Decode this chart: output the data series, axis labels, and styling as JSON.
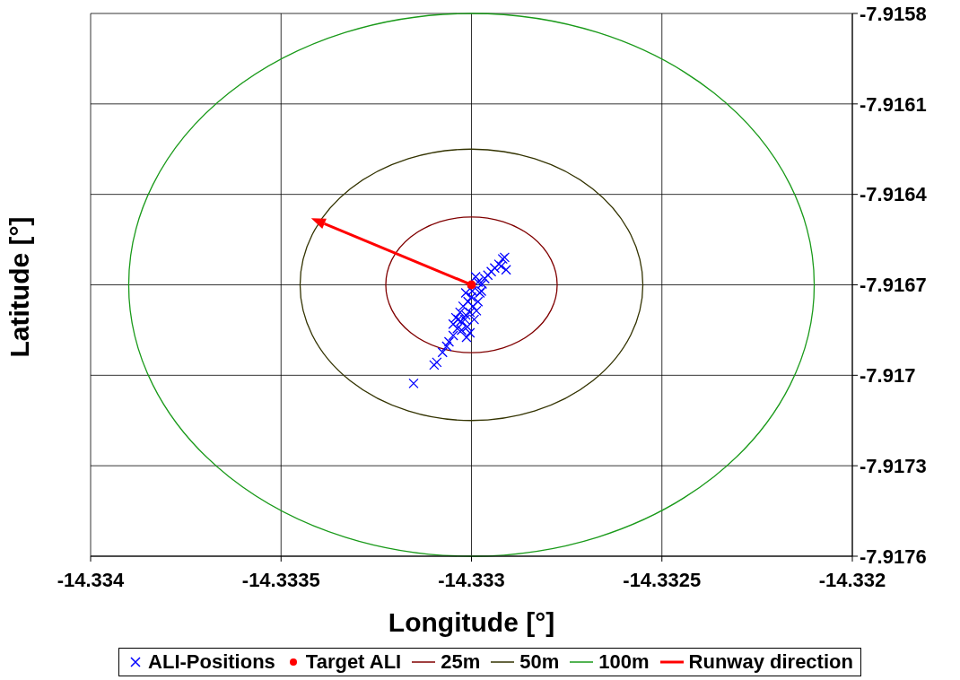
{
  "chart_data": {
    "type": "scatter",
    "xlabel": "Longitude [°]",
    "ylabel": "Latitude [°]",
    "xlim": [
      -14.334,
      -14.332
    ],
    "xticks": [
      -14.334,
      -14.3335,
      -14.333,
      -14.3325,
      -14.332
    ],
    "ylim": [
      -7.9176,
      -7.9158
    ],
    "yticks": [
      -7.9158,
      -7.9161,
      -7.9164,
      -7.9167,
      -7.917,
      -7.9173,
      -7.9176
    ],
    "grid": true,
    "legend": "bottom",
    "annotations": [
      "25m",
      "50m",
      "100m",
      "Runway direction"
    ],
    "series": [
      {
        "name": "ALI-Positions",
        "marker": "cross",
        "color": "#0000ff",
        "x": [
          -14.333152,
          -14.333098,
          -14.333091,
          -14.333076,
          -14.333065,
          -14.333059,
          -14.333048,
          -14.333037,
          -14.333028,
          -14.333026,
          -14.333015,
          -14.333011,
          -14.333004,
          -14.332993,
          -14.33303,
          -14.333022,
          -14.333009,
          -14.333,
          -14.332996,
          -14.332987,
          -14.333017,
          -14.333035,
          -14.332983,
          -14.332978,
          -14.332972,
          -14.332983,
          -14.332965,
          -14.332957,
          -14.332948,
          -14.332939,
          -14.332928,
          -14.332918,
          -14.332913,
          -14.332909,
          -14.332922,
          -14.333048,
          -14.333013,
          -14.333041,
          -14.333004,
          -14.333015,
          -14.332998,
          -14.332974,
          -14.332989
        ],
        "values": [
          -7.917027,
          -7.916966,
          -7.916957,
          -7.916924,
          -7.916904,
          -7.916889,
          -7.916868,
          -7.916845,
          -7.916821,
          -7.91685,
          -7.9168,
          -7.916839,
          -7.916859,
          -7.916815,
          -7.916791,
          -7.916771,
          -7.916756,
          -7.916741,
          -7.916771,
          -7.916786,
          -7.916815,
          -7.916815,
          -7.916756,
          -7.916727,
          -7.916697,
          -7.916691,
          -7.916679,
          -7.916668,
          -7.916656,
          -7.916644,
          -7.916632,
          -7.916614,
          -7.916609,
          -7.91665,
          -7.916638,
          -7.91683,
          -7.916874,
          -7.916809,
          -7.916791,
          -7.916727,
          -7.916721,
          -7.916721,
          -7.916673
        ]
      },
      {
        "name": "Target ALI",
        "marker": "circle",
        "color": "#ff0000",
        "x": [
          -14.333
        ],
        "values": [
          -7.9167
        ]
      }
    ]
  }
}
